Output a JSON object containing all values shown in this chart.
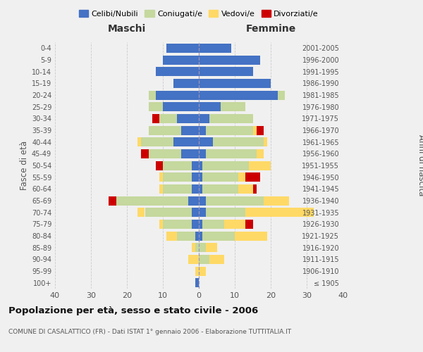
{
  "age_groups": [
    "100+",
    "95-99",
    "90-94",
    "85-89",
    "80-84",
    "75-79",
    "70-74",
    "65-69",
    "60-64",
    "55-59",
    "50-54",
    "45-49",
    "40-44",
    "35-39",
    "30-34",
    "25-29",
    "20-24",
    "15-19",
    "10-14",
    "5-9",
    "0-4"
  ],
  "birth_years": [
    "≤ 1905",
    "1906-1910",
    "1911-1915",
    "1916-1920",
    "1921-1925",
    "1926-1930",
    "1931-1935",
    "1936-1940",
    "1941-1945",
    "1946-1950",
    "1951-1955",
    "1956-1960",
    "1961-1965",
    "1966-1970",
    "1971-1975",
    "1976-1980",
    "1981-1985",
    "1986-1990",
    "1991-1995",
    "1996-2000",
    "2001-2005"
  ],
  "colors": {
    "celibi": "#4472c4",
    "coniugati": "#c5d89d",
    "vedovi": "#ffd966",
    "divorziati": "#cc0000"
  },
  "maschi": {
    "celibi": [
      1,
      0,
      0,
      0,
      1,
      2,
      2,
      3,
      2,
      2,
      2,
      5,
      7,
      5,
      6,
      10,
      12,
      7,
      12,
      10,
      9
    ],
    "coniugati": [
      0,
      0,
      0,
      1,
      5,
      8,
      13,
      20,
      8,
      8,
      8,
      9,
      9,
      9,
      5,
      4,
      2,
      0,
      0,
      0,
      0
    ],
    "vedovi": [
      0,
      1,
      3,
      1,
      3,
      1,
      2,
      0,
      1,
      1,
      0,
      0,
      1,
      0,
      0,
      0,
      0,
      0,
      0,
      0,
      0
    ],
    "divorziati": [
      0,
      0,
      0,
      0,
      0,
      0,
      0,
      2,
      0,
      0,
      2,
      2,
      0,
      0,
      2,
      0,
      0,
      0,
      0,
      0,
      0
    ]
  },
  "femmine": {
    "celibi": [
      0,
      0,
      0,
      0,
      1,
      1,
      2,
      2,
      1,
      1,
      1,
      2,
      4,
      2,
      3,
      6,
      22,
      20,
      15,
      17,
      9
    ],
    "coniugati": [
      0,
      0,
      3,
      2,
      9,
      6,
      11,
      16,
      10,
      10,
      13,
      14,
      14,
      13,
      12,
      7,
      2,
      0,
      0,
      0,
      0
    ],
    "vedovi": [
      0,
      2,
      4,
      3,
      9,
      6,
      19,
      7,
      4,
      2,
      6,
      2,
      1,
      1,
      0,
      0,
      0,
      0,
      0,
      0,
      0
    ],
    "divorziati": [
      0,
      0,
      0,
      0,
      0,
      2,
      0,
      0,
      1,
      4,
      0,
      0,
      0,
      2,
      0,
      0,
      0,
      0,
      0,
      0,
      0
    ]
  },
  "xlim": 40,
  "title": "Popolazione per età, sesso e stato civile - 2006",
  "subtitle": "COMUNE DI CASALATTICO (FR) - Dati ISTAT 1° gennaio 2006 - Elaborazione TUTTITALIA.IT",
  "xlabel_left": "Maschi",
  "xlabel_right": "Femmine",
  "ylabel_left": "Fasce di età",
  "ylabel_right": "Anni di nascita",
  "legend_labels": [
    "Celibi/Nubili",
    "Coniugati/e",
    "Vedovi/e",
    "Divorziati/e"
  ],
  "bg_color": "#f0f0f0",
  "grid_color": "#cccccc"
}
